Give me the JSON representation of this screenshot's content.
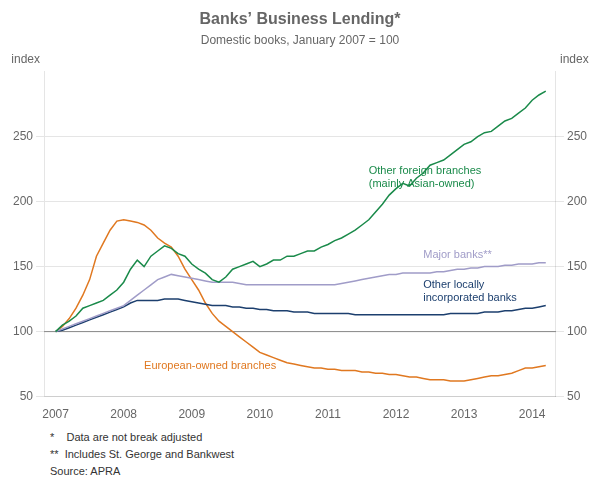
{
  "chart_data": {
    "type": "line",
    "title": "Banks’ Business Lending*",
    "subtitle": "Domestic books, January 2007 = 100",
    "ylabel": "index",
    "y2label": "index",
    "xlim": [
      2006.83,
      2014.35
    ],
    "xticks": [
      2007,
      2008,
      2009,
      2010,
      2011,
      2012,
      2013,
      2014
    ],
    "ylim": [
      50,
      300
    ],
    "yticks": [
      50,
      100,
      150,
      200,
      250
    ],
    "y2lim": [
      50,
      300
    ],
    "y2ticks": [
      50,
      100,
      150,
      200,
      250
    ],
    "grid": true,
    "reference_line": {
      "y": 100,
      "color": "#888888"
    },
    "footnotes": [
      "*    Data are not break adjusted",
      "**  Includes St. George and Bankwest",
      "Source: APRA"
    ],
    "x": [
      2007.0,
      2007.1,
      2007.2,
      2007.3,
      2007.4,
      2007.5,
      2007.6,
      2007.7,
      2007.8,
      2007.9,
      2008.0,
      2008.1,
      2008.2,
      2008.3,
      2008.4,
      2008.5,
      2008.6,
      2008.7,
      2008.8,
      2008.9,
      2009.0,
      2009.1,
      2009.2,
      2009.3,
      2009.4,
      2009.5,
      2009.6,
      2009.7,
      2009.8,
      2009.9,
      2010.0,
      2010.1,
      2010.2,
      2010.3,
      2010.4,
      2010.5,
      2010.6,
      2010.7,
      2010.8,
      2010.9,
      2011.0,
      2011.1,
      2011.2,
      2011.3,
      2011.4,
      2011.5,
      2011.6,
      2011.7,
      2011.8,
      2011.9,
      2012.0,
      2012.1,
      2012.2,
      2012.3,
      2012.4,
      2012.5,
      2012.6,
      2012.7,
      2012.8,
      2012.9,
      2013.0,
      2013.1,
      2013.2,
      2013.3,
      2013.4,
      2013.5,
      2013.6,
      2013.7,
      2013.8,
      2013.9,
      2014.0,
      2014.1,
      2014.2
    ],
    "series": [
      {
        "name": "Other foreign branches\n(mainly Asian-owned)",
        "color": "#1a8a4a",
        "annotation": {
          "x": 2011.6,
          "y": 208
        },
        "values": [
          100,
          105,
          108,
          112,
          118,
          120,
          122,
          124,
          128,
          132,
          138,
          148,
          155,
          150,
          158,
          162,
          166,
          164,
          160,
          158,
          152,
          148,
          145,
          140,
          138,
          142,
          148,
          150,
          152,
          154,
          150,
          152,
          155,
          155,
          158,
          158,
          160,
          162,
          162,
          165,
          167,
          170,
          172,
          175,
          178,
          182,
          186,
          192,
          198,
          205,
          210,
          214,
          212,
          218,
          222,
          228,
          230,
          232,
          236,
          240,
          244,
          246,
          250,
          253,
          254,
          258,
          262,
          264,
          268,
          272,
          278,
          282,
          285
        ]
      },
      {
        "name": "Major banks**",
        "color": "#a09cc8",
        "annotation": {
          "x": 2012.4,
          "y": 158
        },
        "values": [
          100,
          102,
          104,
          106,
          108,
          110,
          112,
          114,
          116,
          118,
          120,
          124,
          128,
          132,
          136,
          140,
          142,
          144,
          143,
          142,
          141,
          140,
          139,
          138,
          138,
          138,
          138,
          137,
          136,
          136,
          136,
          136,
          136,
          136,
          136,
          136,
          136,
          136,
          136,
          136,
          136,
          136,
          137,
          138,
          139,
          140,
          141,
          142,
          143,
          144,
          144,
          145,
          145,
          145,
          145,
          145,
          146,
          146,
          147,
          148,
          148,
          149,
          149,
          150,
          150,
          150,
          151,
          151,
          152,
          152,
          152,
          153,
          153
        ]
      },
      {
        "name": "Other locally\nincorporated banks",
        "color": "#1c3f6e",
        "annotation": {
          "x": 2012.4,
          "y": 140
        },
        "values": [
          100,
          101,
          103,
          105,
          107,
          109,
          111,
          113,
          115,
          117,
          119,
          122,
          124,
          124,
          124,
          124,
          125,
          125,
          125,
          124,
          123,
          122,
          121,
          120,
          120,
          120,
          119,
          119,
          118,
          118,
          117,
          117,
          116,
          116,
          116,
          115,
          115,
          115,
          114,
          114,
          114,
          114,
          114,
          114,
          113,
          113,
          113,
          113,
          113,
          113,
          113,
          113,
          113,
          113,
          113,
          113,
          113,
          113,
          114,
          114,
          114,
          114,
          114,
          115,
          115,
          115,
          116,
          116,
          117,
          118,
          118,
          119,
          120
        ]
      },
      {
        "name": "European-owned branches",
        "color": "#e07820",
        "annotation": {
          "x": 2008.3,
          "y": 73
        },
        "values": [
          100,
          104,
          110,
          118,
          128,
          140,
          158,
          168,
          178,
          185,
          186,
          185,
          184,
          182,
          178,
          172,
          168,
          165,
          158,
          148,
          140,
          132,
          122,
          114,
          108,
          104,
          100,
          96,
          92,
          88,
          84,
          82,
          80,
          78,
          76,
          75,
          74,
          73,
          72,
          72,
          71,
          71,
          70,
          70,
          70,
          69,
          69,
          68,
          68,
          67,
          67,
          66,
          65,
          65,
          64,
          63,
          63,
          63,
          62,
          62,
          62,
          63,
          64,
          65,
          66,
          66,
          67,
          68,
          70,
          72,
          72,
          73,
          74
        ]
      }
    ]
  }
}
